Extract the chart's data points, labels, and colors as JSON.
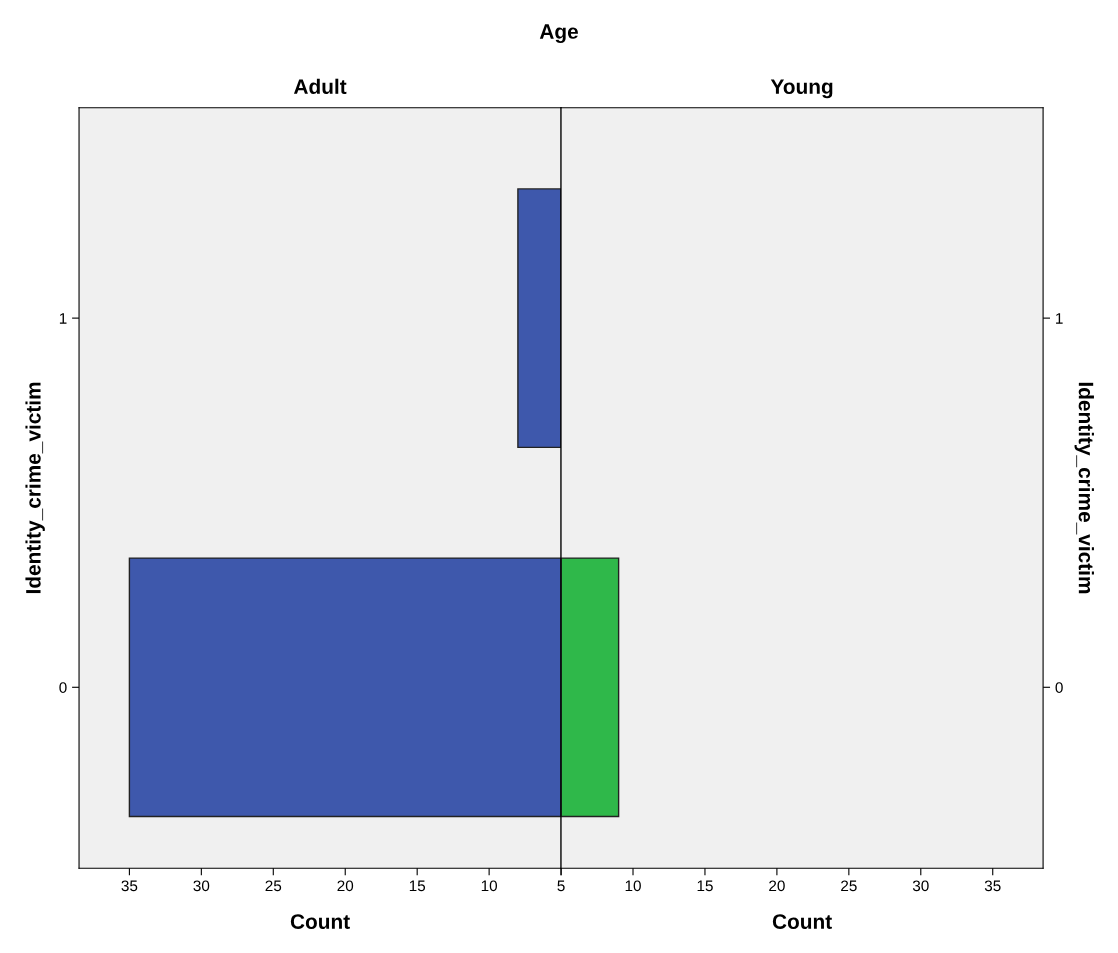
{
  "chart_data": [
    {
      "type": "bar",
      "orientation": "horizontal",
      "title": "Adult",
      "xlabel": "Count",
      "ylabel": "Identity_crime_victim",
      "annotations": [
        "Age"
      ],
      "categories": [
        "1",
        "0"
      ],
      "series": [
        {
          "color": "#3e58ac",
          "values": [
            8,
            35
          ]
        }
      ],
      "xlim": [
        38.5,
        5
      ],
      "xticks": [
        35,
        30,
        25,
        20,
        15,
        10,
        5
      ],
      "grid": false
    },
    {
      "type": "bar",
      "orientation": "horizontal",
      "title": "Young",
      "xlabel": "Count",
      "ylabel": "Identity_crime_victim",
      "categories": [
        "1",
        "0"
      ],
      "series": [
        {
          "color": "#2fb84a",
          "values": [
            null,
            9
          ]
        }
      ],
      "xlim": [
        5,
        38.5
      ],
      "xticks": [
        {
          "value": 5,
          "label": null
        },
        10,
        15,
        20,
        25,
        30,
        35
      ],
      "grid": false
    }
  ]
}
